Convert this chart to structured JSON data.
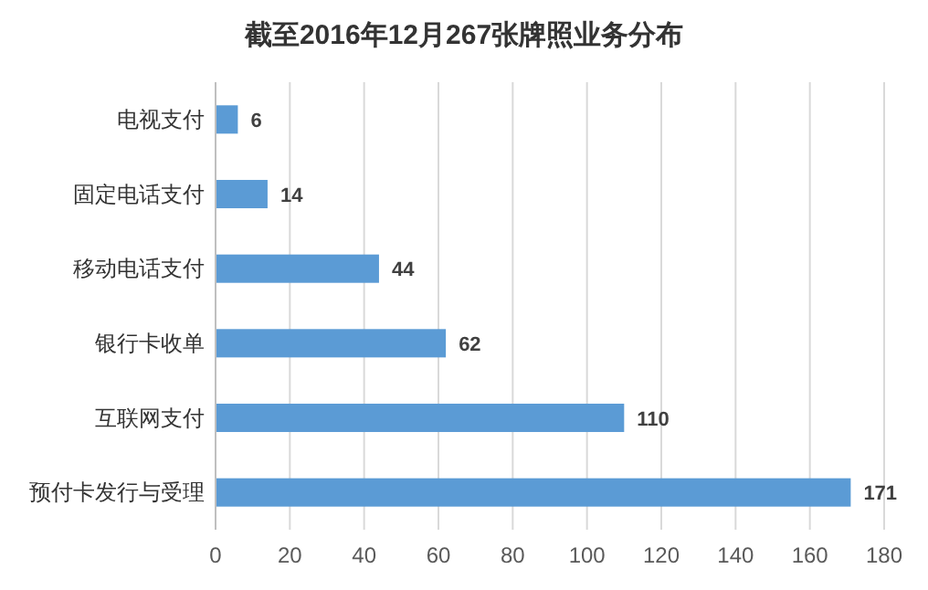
{
  "chart_data": {
    "type": "bar",
    "orientation": "horizontal",
    "title": "截至2016年12月267张牌照业务分布",
    "categories": [
      "电视支付",
      "固定电话支付",
      "移动电话支付",
      "银行卡收单",
      "互联网支付",
      "预付卡发行与受理"
    ],
    "values": [
      6,
      14,
      44,
      62,
      110,
      171
    ],
    "color": "#5b9bd5",
    "xlim": [
      0,
      180
    ],
    "xticks": [
      0,
      20,
      40,
      60,
      80,
      100,
      120,
      140,
      160,
      180
    ],
    "grid": "x",
    "data_labels": true
  }
}
